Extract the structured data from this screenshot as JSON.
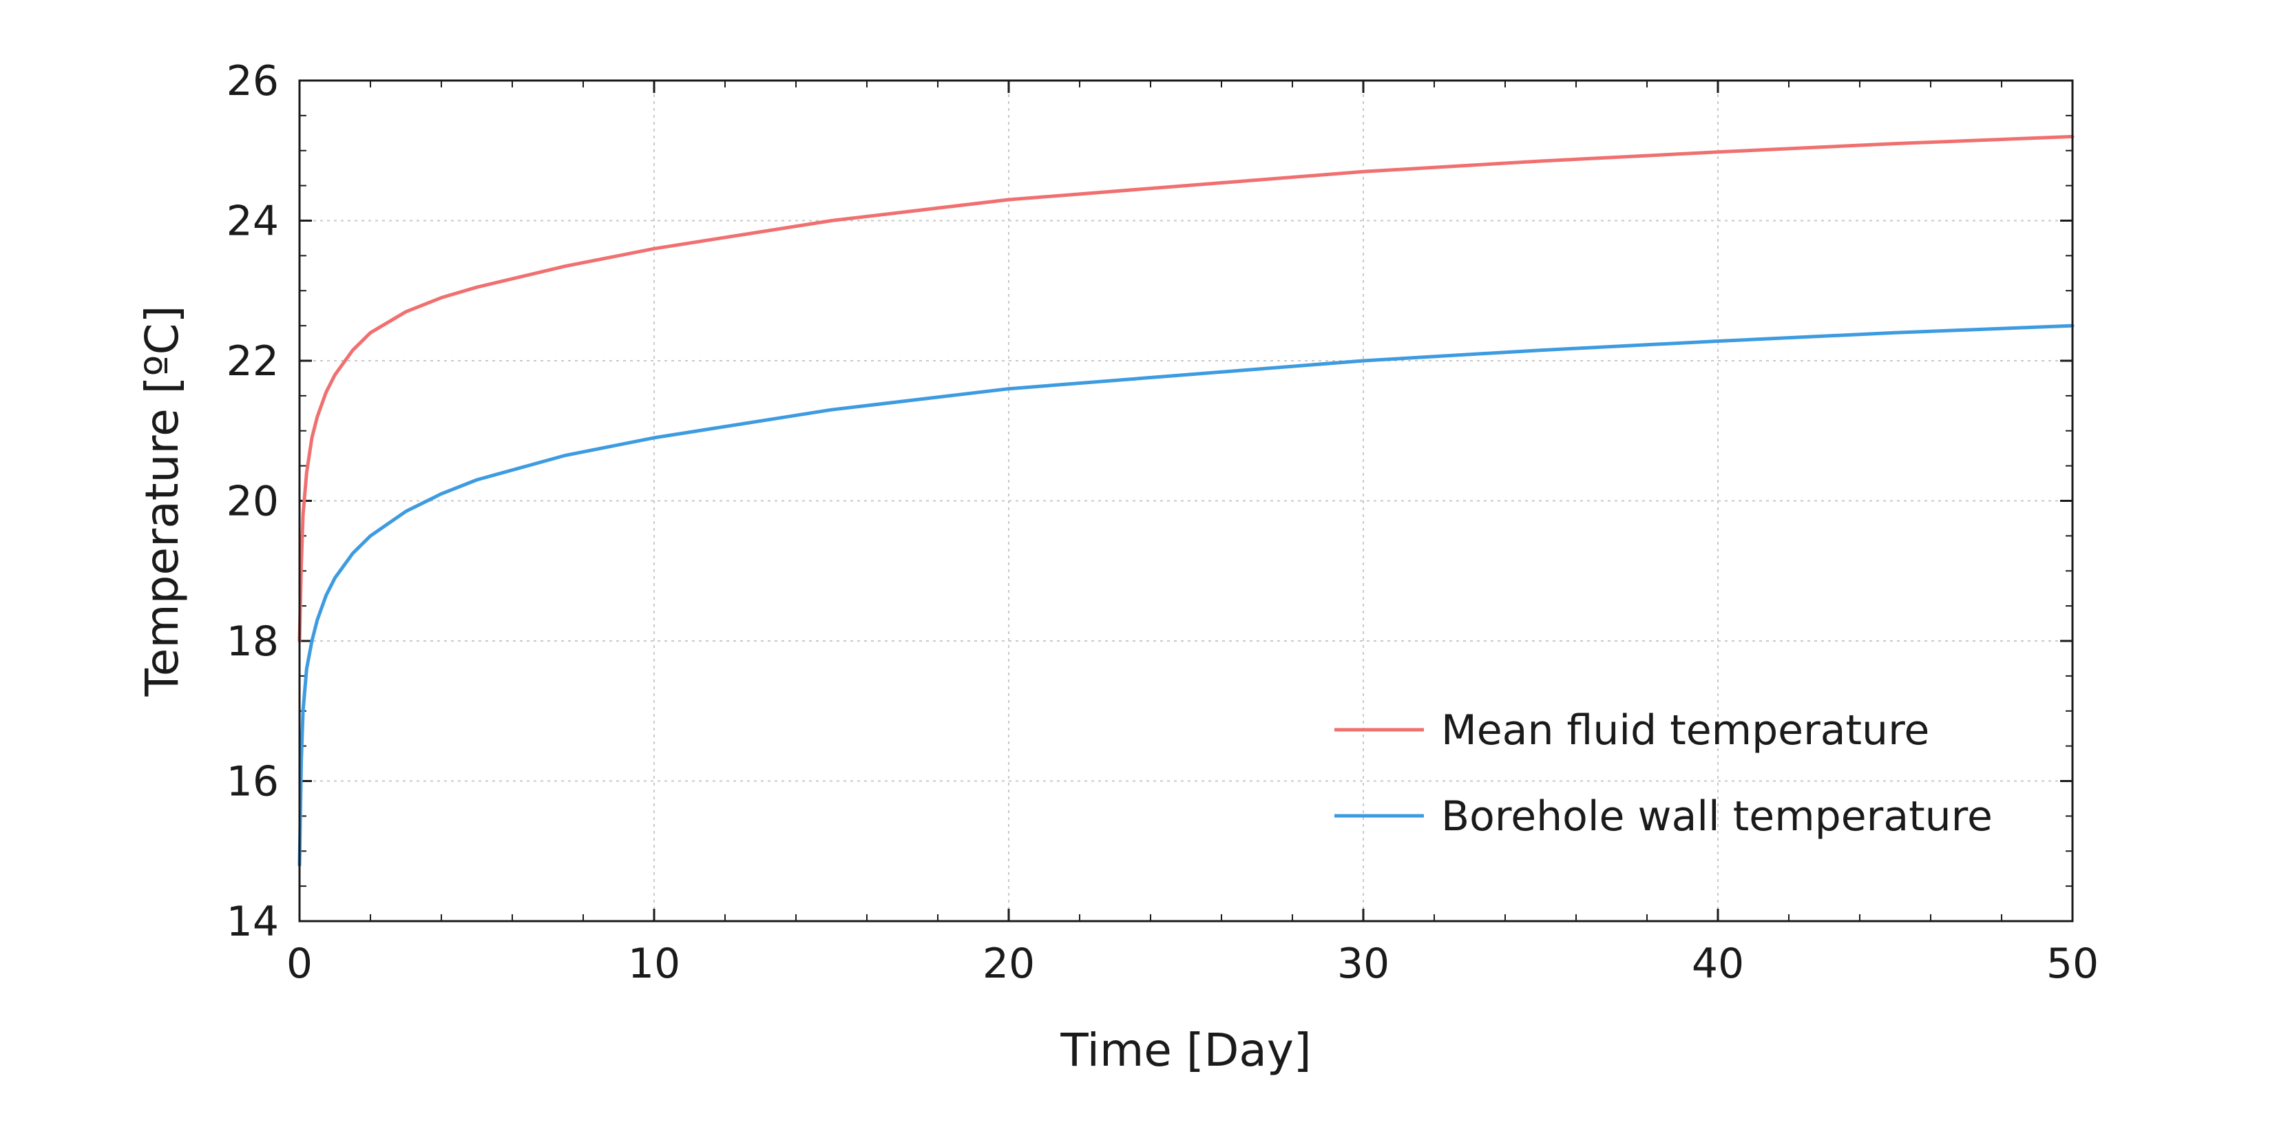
{
  "chart_data": {
    "type": "line",
    "title": "",
    "xlabel": "Time [Day]",
    "ylabel": "Temperature [ºC]",
    "xlim": [
      0,
      50
    ],
    "ylim": [
      14,
      26
    ],
    "x_ticks": [
      0,
      10,
      20,
      30,
      40,
      50
    ],
    "x_tick_labels": [
      "0",
      "10",
      "20",
      "30",
      "40",
      "50"
    ],
    "y_ticks": [
      14,
      16,
      18,
      20,
      22,
      24,
      26
    ],
    "y_tick_labels": [
      "14",
      "16",
      "18",
      "20",
      "22",
      "24",
      "26"
    ],
    "grid": true,
    "legend_position": "lower-right",
    "series": [
      {
        "name": "Mean fluid temperature",
        "color": "#f07070",
        "x": [
          0,
          0.05,
          0.1,
          0.2,
          0.35,
          0.5,
          0.75,
          1,
          1.5,
          2,
          3,
          4,
          5,
          7.5,
          10,
          15,
          20,
          25,
          30,
          35,
          40,
          45,
          50
        ],
        "y": [
          18.0,
          19.1,
          19.8,
          20.4,
          20.9,
          21.2,
          21.55,
          21.8,
          22.15,
          22.4,
          22.7,
          22.9,
          23.05,
          23.35,
          23.6,
          24.0,
          24.3,
          24.5,
          24.7,
          24.85,
          24.98,
          25.1,
          25.2
        ]
      },
      {
        "name": "Borehole wall temperature",
        "color": "#3d9be0",
        "x": [
          0,
          0.05,
          0.1,
          0.2,
          0.35,
          0.5,
          0.75,
          1,
          1.5,
          2,
          3,
          4,
          5,
          7.5,
          10,
          15,
          20,
          25,
          30,
          35,
          40,
          45,
          50
        ],
        "y": [
          14.8,
          16.3,
          17.0,
          17.6,
          18.0,
          18.3,
          18.65,
          18.9,
          19.25,
          19.5,
          19.85,
          20.1,
          20.3,
          20.65,
          20.9,
          21.3,
          21.6,
          21.8,
          22.0,
          22.15,
          22.28,
          22.4,
          22.5
        ]
      }
    ]
  }
}
